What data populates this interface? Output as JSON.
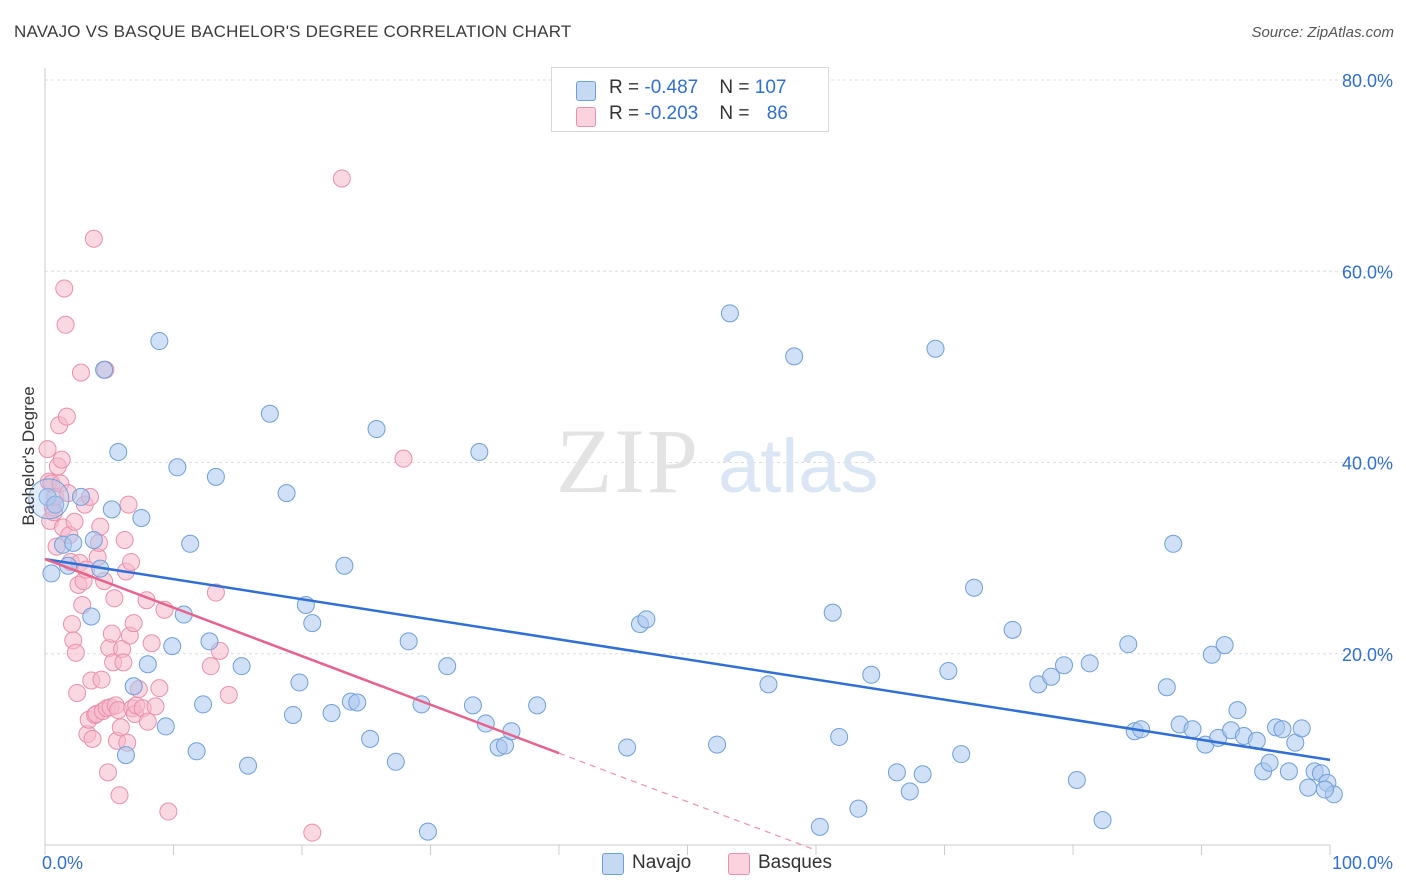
{
  "header": {
    "title": "NAVAJO VS BASQUE BACHELOR'S DEGREE CORRELATION CHART",
    "source": "Source: ZipAtlas.com"
  },
  "legend": {
    "navajo": {
      "r_label": "R = ",
      "r_value": "-0.487",
      "n_label": "N = ",
      "n_value": "107"
    },
    "basques": {
      "r_label": "R = ",
      "r_value": "-0.203",
      "n_label": "N = ",
      "n_value": "86"
    }
  },
  "colors": {
    "navajo_fill": "#a9c6ee",
    "navajo_stroke": "#6f9fd9",
    "navajo_line": "#2f6fd6",
    "basques_fill": "#f6b8cb",
    "basques_stroke": "#ea8fab",
    "basques_line": "#e8628e",
    "axis_label": "#2f6fd6",
    "grid": "#dddddd"
  },
  "chart_data": {
    "type": "scatter",
    "xlabel": "",
    "ylabel": "Bachelor's Degree",
    "xlim": [
      0,
      100
    ],
    "ylim": [
      0,
      80
    ],
    "x_tick_labels": [
      "0.0%",
      "100.0%"
    ],
    "y_ticks": [
      20,
      40,
      60,
      80
    ],
    "y_tick_labels": [
      "20.0%",
      "40.0%",
      "60.0%",
      "80.0%"
    ],
    "grid": true,
    "legend_position": "top-center",
    "watermark": {
      "zip": "ZIP",
      "atlas": "atlas"
    },
    "series": [
      {
        "name": "Navajo",
        "points": [
          [
            0.2,
            36.4
          ],
          [
            0.5,
            28.4
          ],
          [
            0.8,
            35.6
          ],
          [
            1.4,
            31.4
          ],
          [
            1.8,
            29.2
          ],
          [
            2.2,
            31.6
          ],
          [
            2.8,
            36.4
          ],
          [
            3.8,
            31.9
          ],
          [
            3.6,
            23.9
          ],
          [
            4.3,
            28.9
          ],
          [
            4.6,
            49.7
          ],
          [
            5.2,
            35.1
          ],
          [
            5.7,
            41.1
          ],
          [
            6.3,
            9.4
          ],
          [
            6.9,
            16.6
          ],
          [
            7.5,
            34.2
          ],
          [
            8.0,
            18.9
          ],
          [
            8.9,
            52.7
          ],
          [
            9.4,
            12.4
          ],
          [
            9.9,
            20.8
          ],
          [
            10.3,
            39.5
          ],
          [
            10.8,
            24.1
          ],
          [
            11.3,
            31.5
          ],
          [
            11.8,
            9.8
          ],
          [
            12.3,
            14.7
          ],
          [
            12.8,
            21.3
          ],
          [
            13.3,
            38.5
          ],
          [
            15.3,
            18.7
          ],
          [
            15.8,
            8.3
          ],
          [
            17.5,
            45.1
          ],
          [
            18.8,
            36.8
          ],
          [
            19.3,
            13.6
          ],
          [
            19.8,
            17.0
          ],
          [
            20.3,
            25.1
          ],
          [
            20.8,
            23.2
          ],
          [
            22.3,
            13.8
          ],
          [
            23.3,
            29.2
          ],
          [
            23.8,
            15.0
          ],
          [
            24.3,
            14.9
          ],
          [
            25.3,
            11.1
          ],
          [
            25.8,
            43.5
          ],
          [
            27.3,
            8.7
          ],
          [
            28.3,
            21.3
          ],
          [
            29.3,
            14.7
          ],
          [
            29.8,
            1.4
          ],
          [
            31.3,
            18.7
          ],
          [
            33.3,
            14.6
          ],
          [
            33.8,
            41.1
          ],
          [
            34.3,
            12.7
          ],
          [
            35.3,
            10.2
          ],
          [
            35.8,
            10.4
          ],
          [
            36.3,
            11.9
          ],
          [
            38.3,
            14.6
          ],
          [
            45.3,
            10.2
          ],
          [
            46.3,
            23.1
          ],
          [
            46.8,
            23.6
          ],
          [
            52.3,
            10.5
          ],
          [
            53.3,
            55.6
          ],
          [
            56.3,
            16.8
          ],
          [
            58.3,
            51.1
          ],
          [
            60.3,
            1.9
          ],
          [
            61.3,
            24.3
          ],
          [
            61.8,
            11.3
          ],
          [
            63.3,
            3.8
          ],
          [
            64.3,
            17.8
          ],
          [
            66.3,
            7.6
          ],
          [
            67.3,
            5.6
          ],
          [
            68.3,
            7.4
          ],
          [
            69.3,
            51.9
          ],
          [
            70.3,
            18.2
          ],
          [
            71.3,
            9.5
          ],
          [
            72.3,
            26.9
          ],
          [
            75.3,
            22.5
          ],
          [
            77.3,
            16.8
          ],
          [
            78.3,
            17.6
          ],
          [
            79.3,
            18.8
          ],
          [
            80.3,
            6.8
          ],
          [
            81.3,
            19.0
          ],
          [
            82.3,
            2.6
          ],
          [
            84.3,
            21.0
          ],
          [
            84.8,
            11.9
          ],
          [
            85.3,
            12.1
          ],
          [
            87.3,
            16.5
          ],
          [
            87.8,
            31.5
          ],
          [
            88.3,
            12.6
          ],
          [
            89.3,
            12.1
          ],
          [
            90.3,
            10.5
          ],
          [
            90.8,
            19.9
          ],
          [
            91.3,
            11.2
          ],
          [
            91.8,
            20.9
          ],
          [
            92.3,
            12.0
          ],
          [
            92.8,
            14.1
          ],
          [
            93.3,
            11.4
          ],
          [
            94.3,
            10.9
          ],
          [
            94.8,
            7.7
          ],
          [
            95.3,
            8.6
          ],
          [
            95.8,
            12.3
          ],
          [
            96.3,
            12.1
          ],
          [
            96.8,
            7.7
          ],
          [
            97.3,
            10.7
          ],
          [
            97.8,
            12.2
          ],
          [
            98.3,
            6.0
          ],
          [
            98.8,
            7.7
          ],
          [
            99.3,
            7.5
          ],
          [
            99.8,
            6.5
          ],
          [
            100.3,
            5.3
          ],
          [
            99.6,
            5.8
          ]
        ]
      },
      {
        "name": "Basques",
        "points": [
          [
            0.2,
            41.4
          ],
          [
            0.3,
            38.0
          ],
          [
            0.4,
            33.9
          ],
          [
            0.5,
            37.8
          ],
          [
            0.6,
            35.3
          ],
          [
            0.7,
            34.8
          ],
          [
            0.8,
            36.4
          ],
          [
            0.9,
            31.2
          ],
          [
            1.0,
            39.6
          ],
          [
            1.1,
            43.9
          ],
          [
            1.2,
            37.8
          ],
          [
            1.3,
            40.3
          ],
          [
            1.4,
            33.2
          ],
          [
            1.5,
            58.2
          ],
          [
            1.6,
            54.4
          ],
          [
            1.7,
            44.8
          ],
          [
            1.8,
            36.8
          ],
          [
            1.9,
            32.4
          ],
          [
            2.0,
            29.6
          ],
          [
            2.1,
            23.1
          ],
          [
            2.2,
            21.4
          ],
          [
            2.3,
            33.8
          ],
          [
            2.4,
            20.1
          ],
          [
            2.5,
            15.9
          ],
          [
            2.6,
            27.2
          ],
          [
            2.7,
            29.5
          ],
          [
            2.8,
            49.4
          ],
          [
            2.9,
            25.1
          ],
          [
            3.0,
            27.6
          ],
          [
            3.1,
            35.6
          ],
          [
            3.2,
            28.8
          ],
          [
            3.3,
            11.6
          ],
          [
            3.4,
            13.1
          ],
          [
            3.5,
            36.4
          ],
          [
            3.6,
            17.2
          ],
          [
            3.7,
            11.1
          ],
          [
            3.8,
            63.4
          ],
          [
            3.9,
            13.6
          ],
          [
            4.0,
            13.7
          ],
          [
            4.1,
            30.1
          ],
          [
            4.2,
            31.6
          ],
          [
            4.3,
            33.3
          ],
          [
            4.4,
            17.3
          ],
          [
            4.5,
            14.0
          ],
          [
            4.6,
            27.6
          ],
          [
            4.7,
            49.7
          ],
          [
            4.8,
            14.3
          ],
          [
            4.9,
            7.6
          ],
          [
            5.0,
            20.6
          ],
          [
            5.1,
            14.4
          ],
          [
            5.2,
            22.1
          ],
          [
            5.3,
            19.1
          ],
          [
            5.4,
            25.8
          ],
          [
            5.5,
            14.6
          ],
          [
            5.6,
            10.9
          ],
          [
            5.7,
            14.1
          ],
          [
            5.8,
            5.2
          ],
          [
            5.9,
            12.3
          ],
          [
            6.0,
            20.5
          ],
          [
            6.1,
            19.1
          ],
          [
            6.2,
            31.9
          ],
          [
            6.3,
            28.6
          ],
          [
            6.4,
            10.7
          ],
          [
            6.5,
            35.6
          ],
          [
            6.6,
            21.9
          ],
          [
            6.7,
            29.6
          ],
          [
            6.8,
            14.3
          ],
          [
            6.9,
            23.2
          ],
          [
            7.0,
            13.7
          ],
          [
            7.1,
            14.6
          ],
          [
            7.3,
            16.3
          ],
          [
            7.6,
            14.3
          ],
          [
            7.9,
            25.6
          ],
          [
            8.0,
            12.9
          ],
          [
            8.3,
            21.1
          ],
          [
            8.6,
            14.5
          ],
          [
            8.9,
            16.4
          ],
          [
            9.3,
            24.6
          ],
          [
            9.6,
            3.5
          ],
          [
            12.9,
            18.7
          ],
          [
            13.3,
            26.4
          ],
          [
            13.6,
            20.3
          ],
          [
            14.3,
            15.7
          ],
          [
            20.8,
            1.3
          ],
          [
            23.1,
            69.7
          ],
          [
            27.9,
            40.4
          ]
        ]
      }
    ],
    "trend_lines": [
      {
        "series": "Navajo",
        "x": [
          0,
          100
        ],
        "y": [
          29.9,
          8.9
        ]
      },
      {
        "series": "Basques",
        "x": [
          0,
          40
        ],
        "y": [
          29.9,
          9.6
        ],
        "dashed_extension_to_x": 60
      }
    ]
  }
}
